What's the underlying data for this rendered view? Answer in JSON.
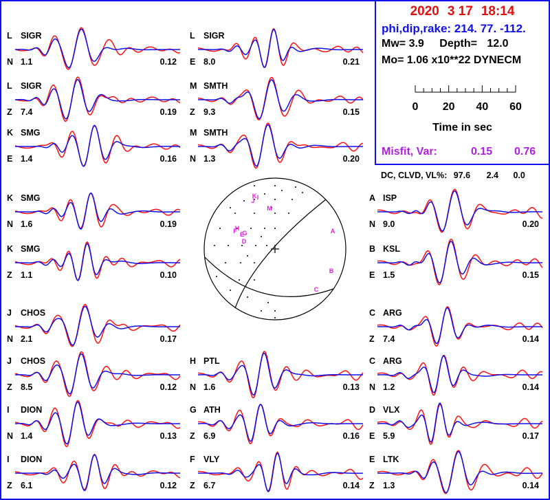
{
  "event": {
    "date": [
      "2020",
      "3 17",
      "18:14"
    ],
    "phi_dip_rake": "phi,dip,rake: 214. 77. -112.",
    "mw_label": "Mw=",
    "mw": "3.9",
    "depth_label": "Depth=",
    "depth": "12.0",
    "mo": "Mo= 1.06 x10**22 DYNECM",
    "misfit_label": "Misfit, Var:",
    "misfit": "0.15",
    "var": "0.76",
    "dc_label": "DC, CLVD, VL%:",
    "dc": "97.6",
    "clvd": "2.4",
    "vl": "0.0"
  },
  "time_scale": {
    "ticks": [
      "0",
      "20",
      "40",
      "60"
    ],
    "label": "Time  in sec"
  },
  "colors": {
    "observed": "#ff1010",
    "synthetic": "#1010e8",
    "frame": "#1010e8",
    "stations_on_beachball": "#e020e0"
  },
  "chart_data": {
    "type": "line",
    "description_source": "waveform fits: observed (red) vs synthetic (blue) per station component",
    "stations": [
      {
        "letter": "L",
        "station": "SIGR",
        "component": "N",
        "left_value": "1.1",
        "right_value": "0.12",
        "col": 0,
        "row": 0,
        "shape": 0
      },
      {
        "letter": "L",
        "station": "SIGR",
        "component": "Z",
        "left_value": "7.4",
        "right_value": "0.19",
        "col": 0,
        "row": 1,
        "shape": 1
      },
      {
        "letter": "K",
        "station": "SMG",
        "component": "E",
        "left_value": "1.4",
        "right_value": "0.16",
        "col": 0,
        "row": 2,
        "shape": 2
      },
      {
        "letter": "K",
        "station": "SMG",
        "component": "N",
        "left_value": "1.6",
        "right_value": "0.19",
        "col": 0,
        "row": 3,
        "shape": 3
      },
      {
        "letter": "K",
        "station": "SMG",
        "component": "Z",
        "left_value": "1.1",
        "right_value": "0.10",
        "col": 0,
        "row": 4,
        "shape": 4
      },
      {
        "letter": "J",
        "station": "CHOS",
        "component": "N",
        "left_value": "2.1",
        "right_value": "0.17",
        "col": 0,
        "row": 5,
        "shape": 5
      },
      {
        "letter": "J",
        "station": "CHOS",
        "component": "Z",
        "left_value": "8.5",
        "right_value": "0.12",
        "col": 0,
        "row": 6,
        "shape": 6
      },
      {
        "letter": "I",
        "station": "DION",
        "component": "N",
        "left_value": "1.4",
        "right_value": "0.13",
        "col": 0,
        "row": 7,
        "shape": 7
      },
      {
        "letter": "I",
        "station": "DION",
        "component": "Z",
        "left_value": "6.1",
        "right_value": "0.12",
        "col": 0,
        "row": 8,
        "shape": 8
      },
      {
        "letter": "L",
        "station": "SIGR",
        "component": "E",
        "left_value": "8.0",
        "right_value": "0.21",
        "col": 1,
        "row": 0,
        "shape": 9
      },
      {
        "letter": "M",
        "station": "SMTH",
        "component": "Z",
        "left_value": "9.3",
        "right_value": "0.15",
        "col": 1,
        "row": 1,
        "shape": 10
      },
      {
        "letter": "M",
        "station": "SMTH",
        "component": "N",
        "left_value": "1.3",
        "right_value": "0.20",
        "col": 1,
        "row": 2,
        "shape": 11
      },
      {
        "letter": "H",
        "station": "PTL",
        "component": "N",
        "left_value": "1.6",
        "right_value": "0.13",
        "col": 1,
        "row": 6,
        "shape": 12
      },
      {
        "letter": "G",
        "station": "ATH",
        "component": "Z",
        "left_value": "6.9",
        "right_value": "0.16",
        "col": 1,
        "row": 7,
        "shape": 13
      },
      {
        "letter": "F",
        "station": "VLY",
        "component": "Z",
        "left_value": "6.7",
        "right_value": "0.14",
        "col": 1,
        "row": 8,
        "shape": 14
      },
      {
        "letter": "A",
        "station": "ISP",
        "component": "N",
        "left_value": "9.0",
        "right_value": "0.20",
        "col": 2,
        "row": 3,
        "shape": 15
      },
      {
        "letter": "B",
        "station": "KSL",
        "component": "E",
        "left_value": "1.5",
        "right_value": "0.15",
        "col": 2,
        "row": 4,
        "shape": 16
      },
      {
        "letter": "C",
        "station": "ARG",
        "component": "Z",
        "left_value": "7.4",
        "right_value": "0.14",
        "col": 2,
        "row": 5,
        "shape": 17
      },
      {
        "letter": "C",
        "station": "ARG",
        "component": "N",
        "left_value": "1.2",
        "right_value": "0.14",
        "col": 2,
        "row": 6,
        "shape": 18
      },
      {
        "letter": "D",
        "station": "VLX",
        "component": "E",
        "left_value": "5.9",
        "right_value": "0.17",
        "col": 2,
        "row": 7,
        "shape": 19
      },
      {
        "letter": "E",
        "station": "LTK",
        "component": "Z",
        "left_value": "1.3",
        "right_value": "0.14",
        "col": 2,
        "row": 8,
        "shape": 20
      }
    ],
    "beachball": {
      "station_marks": [
        "A",
        "B",
        "C",
        "D",
        "H",
        "I",
        "J",
        "K",
        "M",
        "E",
        "F",
        "G"
      ]
    }
  }
}
